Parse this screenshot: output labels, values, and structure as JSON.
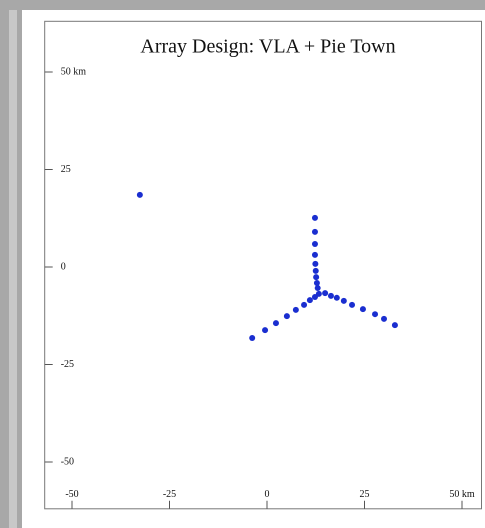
{
  "chart_data": {
    "type": "scatter",
    "title": "Array Design: VLA + Pie Town",
    "series": [
      {
        "color": "#1a2ed0",
        "x": [
          -32.6,
          12.3,
          12.3,
          12.3,
          12.3,
          12.4,
          12.5,
          12.6,
          12.8,
          13.0,
          -3.8,
          -0.5,
          2.3,
          5.1,
          7.4,
          9.5,
          11.0,
          12.3,
          13.3,
          14.9,
          16.4,
          17.9,
          19.7,
          21.8,
          24.6,
          27.7,
          30.0,
          32.8
        ],
        "values": [
          18.5,
          12.6,
          9.0,
          5.9,
          3.1,
          0.8,
          -1.0,
          -2.6,
          -4.1,
          -5.4,
          -18.2,
          -16.2,
          -14.4,
          -12.6,
          -11.0,
          -9.7,
          -8.5,
          -7.7,
          -6.9,
          -6.7,
          -7.4,
          -7.9,
          -8.7,
          -9.7,
          -10.8,
          -12.1,
          -13.3,
          -14.9
        ]
      }
    ],
    "xlim": [
      -57,
      55
    ],
    "ylim": [
      -62,
      63
    ],
    "xticks": [
      -50,
      -25,
      0,
      25,
      {
        "value": 50,
        "label": "50 km"
      }
    ],
    "yticks": [
      -50,
      -25,
      0,
      25,
      {
        "value": 50,
        "label": "50 km"
      }
    ]
  }
}
